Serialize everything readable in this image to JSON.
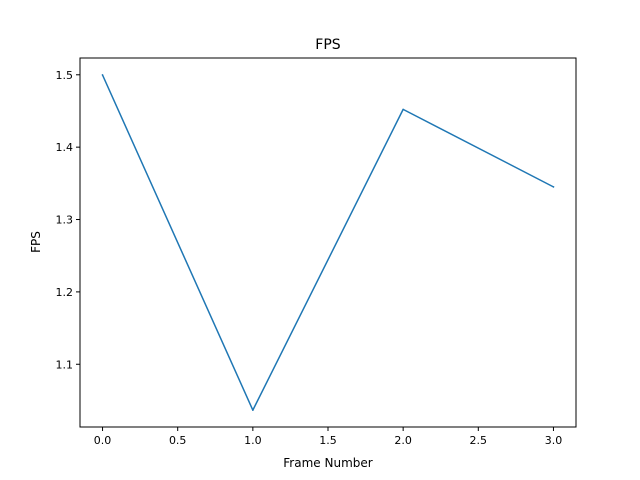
{
  "chart_data": {
    "type": "line",
    "title": "FPS",
    "xlabel": "Frame Number",
    "ylabel": "FPS",
    "xlim": [
      -0.15,
      3.15
    ],
    "ylim": [
      1.0133,
      1.5232
    ],
    "xticks": [
      0.0,
      0.5,
      1.0,
      1.5,
      2.0,
      2.5,
      3.0
    ],
    "xtick_labels": [
      "0.0",
      "0.5",
      "1.0",
      "1.5",
      "2.0",
      "2.5",
      "3.0"
    ],
    "yticks": [
      1.1,
      1.2,
      1.3,
      1.4,
      1.5
    ],
    "ytick_labels": [
      "1.1",
      "1.2",
      "1.3",
      "1.4",
      "1.5"
    ],
    "grid": false,
    "series": [
      {
        "x": [
          0,
          1,
          2,
          3
        ],
        "values": [
          1.4997,
          1.0366,
          1.4522,
          1.3451
        ],
        "color": "#1f77b4"
      }
    ]
  }
}
